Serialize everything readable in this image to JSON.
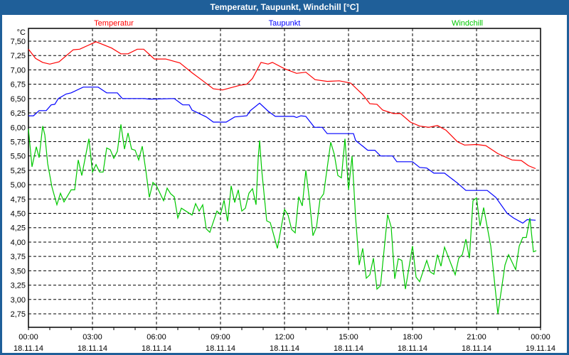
{
  "window": {
    "title": "Temperatur, Taupunkt, Windchill [°C]"
  },
  "chart_data": {
    "type": "line",
    "title": "Temperatur, Taupunkt, Windchill [°C]",
    "ylabel": "°C",
    "ylim": [
      2.5,
      7.72
    ],
    "yticks": [
      7.5,
      7.25,
      7.0,
      6.75,
      6.5,
      6.25,
      6.0,
      5.75,
      5.5,
      5.25,
      5.0,
      4.75,
      4.5,
      4.25,
      4.0,
      3.75,
      3.5,
      3.25,
      3.0,
      2.75
    ],
    "ytick_labels": [
      "7,50",
      "7,25",
      "7,00",
      "6,75",
      "6,50",
      "6,25",
      "6,00",
      "5,75",
      "5,50",
      "5,25",
      "5,00",
      "4,75",
      "4,50",
      "4,25",
      "4,00",
      "3,75",
      "3,50",
      "3,25",
      "3,00",
      "2,75"
    ],
    "x_unit": "minutes since 18.11.14 00:00",
    "xlim": [
      0,
      1440
    ],
    "xticks": [
      {
        "time": "00:00",
        "date": "18.11.14",
        "min": 0
      },
      {
        "time": "03:00",
        "date": "18.11.14",
        "min": 180
      },
      {
        "time": "06:00",
        "date": "18.11.14",
        "min": 360
      },
      {
        "time": "09:00",
        "date": "18.11.14",
        "min": 540
      },
      {
        "time": "12:00",
        "date": "18.11.14",
        "min": 720
      },
      {
        "time": "15:00",
        "date": "18.11.14",
        "min": 900
      },
      {
        "time": "18:00",
        "date": "18.11.14",
        "min": 1080
      },
      {
        "time": "21:00",
        "date": "18.11.14",
        "min": 1260
      },
      {
        "time": "00:00",
        "date": "19.11.14",
        "min": 1440
      }
    ],
    "grid": true,
    "legend_placement": "top",
    "series": [
      {
        "name": "Temperatur",
        "color": "#ff0000",
        "points": [
          [
            0,
            7.36
          ],
          [
            20,
            7.2
          ],
          [
            40,
            7.13
          ],
          [
            60,
            7.1
          ],
          [
            86,
            7.14
          ],
          [
            126,
            7.35
          ],
          [
            144,
            7.36
          ],
          [
            190,
            7.49
          ],
          [
            234,
            7.38
          ],
          [
            260,
            7.28
          ],
          [
            280,
            7.28
          ],
          [
            306,
            7.36
          ],
          [
            324,
            7.36
          ],
          [
            354,
            7.19
          ],
          [
            386,
            7.19
          ],
          [
            426,
            7.12
          ],
          [
            460,
            6.95
          ],
          [
            486,
            6.83
          ],
          [
            520,
            6.67
          ],
          [
            546,
            6.65
          ],
          [
            594,
            6.73
          ],
          [
            614,
            6.75
          ],
          [
            630,
            6.85
          ],
          [
            654,
            7.13
          ],
          [
            674,
            7.1
          ],
          [
            686,
            7.13
          ],
          [
            720,
            7.02
          ],
          [
            754,
            6.94
          ],
          [
            780,
            6.96
          ],
          [
            806,
            6.83
          ],
          [
            840,
            6.8
          ],
          [
            874,
            6.81
          ],
          [
            906,
            6.77
          ],
          [
            940,
            6.57
          ],
          [
            960,
            6.41
          ],
          [
            980,
            6.4
          ],
          [
            996,
            6.3
          ],
          [
            1026,
            6.24
          ],
          [
            1046,
            6.24
          ],
          [
            1074,
            6.09
          ],
          [
            1100,
            6.02
          ],
          [
            1126,
            6.0
          ],
          [
            1150,
            6.03
          ],
          [
            1174,
            5.95
          ],
          [
            1206,
            5.75
          ],
          [
            1226,
            5.69
          ],
          [
            1260,
            5.7
          ],
          [
            1286,
            5.68
          ],
          [
            1320,
            5.54
          ],
          [
            1360,
            5.43
          ],
          [
            1386,
            5.42
          ],
          [
            1406,
            5.33
          ],
          [
            1426,
            5.28
          ]
        ]
      },
      {
        "name": "Taupunkt",
        "color": "#0000ff",
        "points": [
          [
            0,
            6.2
          ],
          [
            14,
            6.2
          ],
          [
            30,
            6.29
          ],
          [
            50,
            6.29
          ],
          [
            64,
            6.39
          ],
          [
            74,
            6.4
          ],
          [
            84,
            6.5
          ],
          [
            106,
            6.58
          ],
          [
            120,
            6.6
          ],
          [
            154,
            6.7
          ],
          [
            196,
            6.7
          ],
          [
            220,
            6.6
          ],
          [
            250,
            6.6
          ],
          [
            264,
            6.5
          ],
          [
            326,
            6.5
          ],
          [
            340,
            6.49
          ],
          [
            410,
            6.5
          ],
          [
            434,
            6.39
          ],
          [
            452,
            6.39
          ],
          [
            460,
            6.3
          ],
          [
            500,
            6.18
          ],
          [
            520,
            6.09
          ],
          [
            556,
            6.09
          ],
          [
            580,
            6.18
          ],
          [
            614,
            6.2
          ],
          [
            624,
            6.29
          ],
          [
            650,
            6.42
          ],
          [
            674,
            6.28
          ],
          [
            694,
            6.19
          ],
          [
            746,
            6.19
          ],
          [
            754,
            6.17
          ],
          [
            766,
            6.2
          ],
          [
            780,
            6.19
          ],
          [
            804,
            6.0
          ],
          [
            826,
            6.0
          ],
          [
            840,
            5.89
          ],
          [
            914,
            5.89
          ],
          [
            920,
            5.77
          ],
          [
            940,
            5.67
          ],
          [
            954,
            5.6
          ],
          [
            974,
            5.6
          ],
          [
            990,
            5.5
          ],
          [
            1024,
            5.5
          ],
          [
            1036,
            5.4
          ],
          [
            1080,
            5.4
          ],
          [
            1100,
            5.3
          ],
          [
            1120,
            5.29
          ],
          [
            1140,
            5.2
          ],
          [
            1170,
            5.2
          ],
          [
            1206,
            5.03
          ],
          [
            1230,
            4.9
          ],
          [
            1290,
            4.9
          ],
          [
            1314,
            4.78
          ],
          [
            1346,
            4.5
          ],
          [
            1364,
            4.42
          ],
          [
            1390,
            4.33
          ],
          [
            1402,
            4.39
          ],
          [
            1426,
            4.38
          ]
        ]
      },
      {
        "name": "Windchill",
        "color": "#00c800",
        "points": [
          [
            0,
            5.97
          ],
          [
            10,
            5.31
          ],
          [
            22,
            5.66
          ],
          [
            30,
            5.47
          ],
          [
            40,
            6.02
          ],
          [
            46,
            5.87
          ],
          [
            54,
            5.37
          ],
          [
            66,
            4.96
          ],
          [
            80,
            4.65
          ],
          [
            90,
            4.85
          ],
          [
            100,
            4.7
          ],
          [
            120,
            4.91
          ],
          [
            130,
            4.91
          ],
          [
            140,
            5.43
          ],
          [
            150,
            5.16
          ],
          [
            170,
            5.8
          ],
          [
            180,
            5.22
          ],
          [
            190,
            5.35
          ],
          [
            200,
            5.22
          ],
          [
            210,
            5.22
          ],
          [
            220,
            5.64
          ],
          [
            230,
            5.61
          ],
          [
            240,
            5.46
          ],
          [
            250,
            5.58
          ],
          [
            260,
            6.05
          ],
          [
            270,
            5.62
          ],
          [
            280,
            5.9
          ],
          [
            290,
            5.62
          ],
          [
            300,
            5.6
          ],
          [
            310,
            5.43
          ],
          [
            320,
            5.67
          ],
          [
            330,
            5.25
          ],
          [
            340,
            4.78
          ],
          [
            350,
            5.04
          ],
          [
            360,
            4.98
          ],
          [
            380,
            4.72
          ],
          [
            390,
            4.94
          ],
          [
            400,
            4.84
          ],
          [
            410,
            4.79
          ],
          [
            420,
            4.42
          ],
          [
            430,
            4.59
          ],
          [
            460,
            4.47
          ],
          [
            470,
            4.67
          ],
          [
            480,
            4.54
          ],
          [
            490,
            4.65
          ],
          [
            500,
            4.23
          ],
          [
            510,
            4.17
          ],
          [
            530,
            4.54
          ],
          [
            540,
            4.48
          ],
          [
            550,
            4.73
          ],
          [
            560,
            4.36
          ],
          [
            570,
            4.98
          ],
          [
            580,
            4.69
          ],
          [
            590,
            4.91
          ],
          [
            600,
            4.54
          ],
          [
            610,
            4.59
          ],
          [
            620,
            4.85
          ],
          [
            630,
            4.93
          ],
          [
            640,
            4.65
          ],
          [
            646,
            5.46
          ],
          [
            650,
            5.77
          ],
          [
            656,
            5.25
          ],
          [
            670,
            4.37
          ],
          [
            680,
            4.34
          ],
          [
            700,
            3.89
          ],
          [
            720,
            4.57
          ],
          [
            730,
            4.47
          ],
          [
            740,
            4.22
          ],
          [
            750,
            4.16
          ],
          [
            760,
            4.79
          ],
          [
            770,
            4.63
          ],
          [
            780,
            5.25
          ],
          [
            790,
            4.75
          ],
          [
            800,
            4.11
          ],
          [
            810,
            4.26
          ],
          [
            820,
            4.75
          ],
          [
            830,
            4.84
          ],
          [
            850,
            5.74
          ],
          [
            860,
            5.53
          ],
          [
            870,
            5.16
          ],
          [
            880,
            5.12
          ],
          [
            890,
            5.8
          ],
          [
            900,
            4.91
          ],
          [
            910,
            5.5
          ],
          [
            920,
            4.42
          ],
          [
            930,
            3.6
          ],
          [
            940,
            3.89
          ],
          [
            950,
            3.37
          ],
          [
            960,
            3.43
          ],
          [
            970,
            3.72
          ],
          [
            980,
            3.18
          ],
          [
            990,
            3.24
          ],
          [
            1010,
            4.48
          ],
          [
            1020,
            4.26
          ],
          [
            1030,
            3.36
          ],
          [
            1040,
            3.71
          ],
          [
            1050,
            3.68
          ],
          [
            1060,
            3.18
          ],
          [
            1080,
            3.93
          ],
          [
            1090,
            3.39
          ],
          [
            1100,
            3.31
          ],
          [
            1120,
            3.68
          ],
          [
            1130,
            3.48
          ],
          [
            1140,
            3.44
          ],
          [
            1150,
            3.78
          ],
          [
            1160,
            3.58
          ],
          [
            1170,
            3.91
          ],
          [
            1200,
            3.43
          ],
          [
            1210,
            3.72
          ],
          [
            1220,
            3.78
          ],
          [
            1230,
            4.05
          ],
          [
            1240,
            3.72
          ],
          [
            1250,
            4.72
          ],
          [
            1260,
            4.77
          ],
          [
            1270,
            4.28
          ],
          [
            1280,
            4.6
          ],
          [
            1300,
            3.93
          ],
          [
            1320,
            2.75
          ],
          [
            1340,
            3.6
          ],
          [
            1350,
            3.78
          ],
          [
            1370,
            3.52
          ],
          [
            1380,
            3.93
          ],
          [
            1390,
            4.08
          ],
          [
            1400,
            4.08
          ],
          [
            1410,
            4.42
          ],
          [
            1420,
            3.83
          ],
          [
            1428,
            3.85
          ]
        ]
      }
    ]
  }
}
